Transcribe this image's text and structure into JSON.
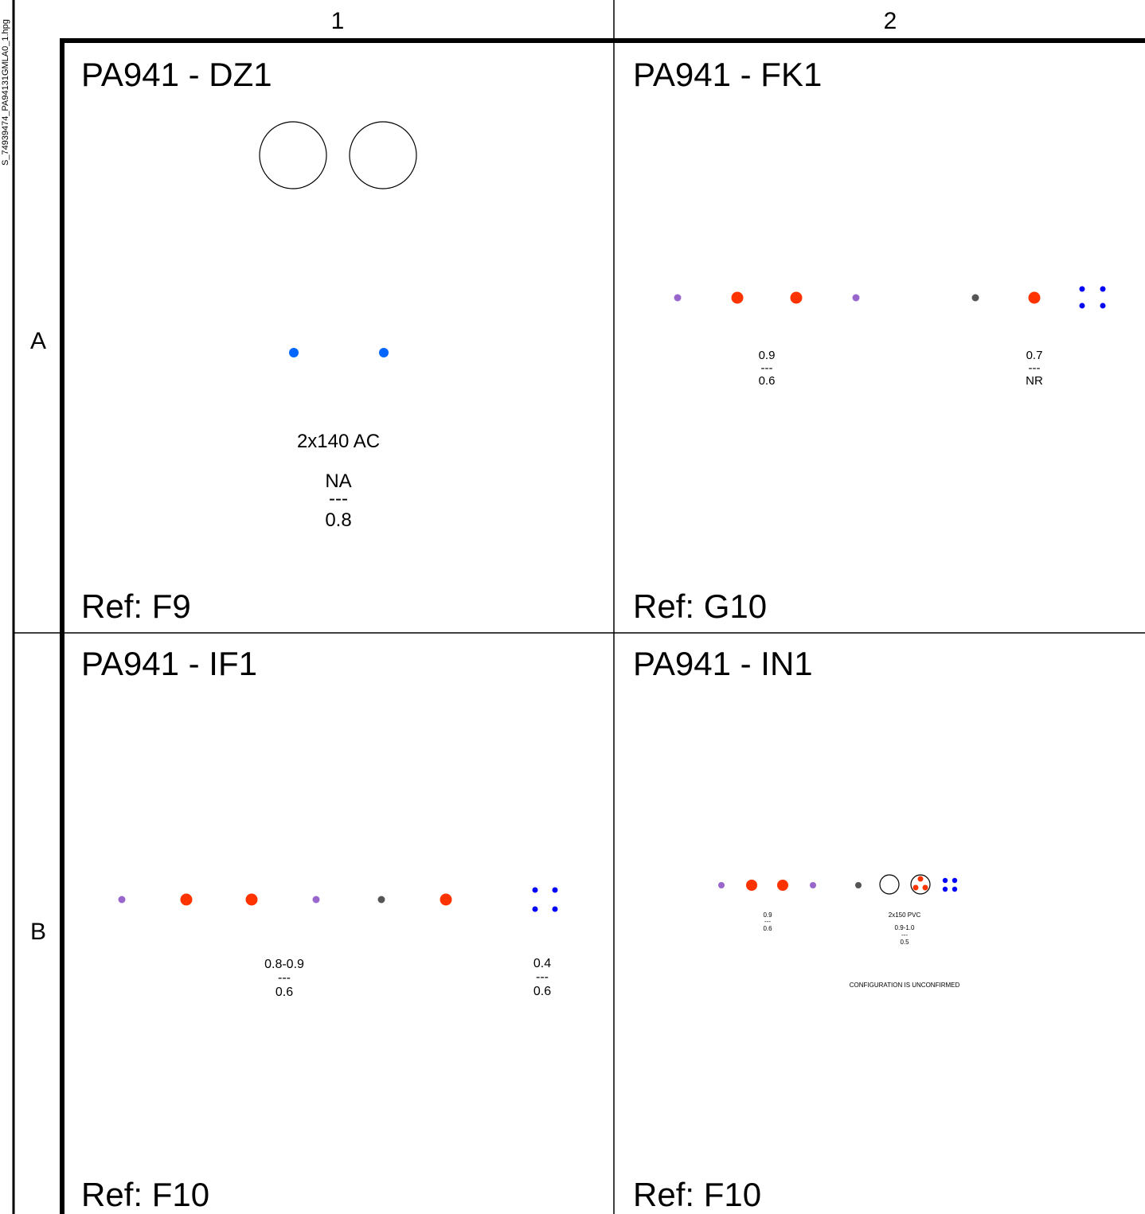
{
  "side_label": "S_74939474_PA94131GMLA0_1.hpg",
  "columns": [
    "1",
    "2"
  ],
  "rows": [
    "A",
    "B"
  ],
  "colors": {
    "purple": "#9966cc",
    "red": "#ff3300",
    "gray": "#555555",
    "blue": "#0000ff",
    "light_blue": "#0066ff"
  },
  "cells": {
    "A1": {
      "title": "PA941 - DZ1",
      "ref": "Ref: F9",
      "cable": "2x140 AC",
      "value": {
        "top": "NA",
        "sep": "---",
        "bottom": "0.8"
      }
    },
    "A2": {
      "title": "PA941 - FK1",
      "ref": "Ref: G10",
      "value1": {
        "top": "0.9",
        "sep": "---",
        "bottom": "0.6"
      },
      "value2": {
        "top": "0.7",
        "sep": "---",
        "bottom": "NR"
      }
    },
    "B1": {
      "title": "PA941 - IF1",
      "ref": "Ref: F10",
      "value1": {
        "top": "0.8-0.9",
        "sep": "---",
        "bottom": "0.6"
      },
      "value2": {
        "top": "0.4",
        "sep": "---",
        "bottom": "0.6"
      }
    },
    "B2": {
      "title": "PA941 - IN1",
      "ref": "Ref: F10",
      "value1": {
        "top": "0.9",
        "sep": "---",
        "bottom": "0.6"
      },
      "cable": "2x150 PVC",
      "value2": {
        "top": "0.9-1.0",
        "sep": "---",
        "bottom": "0.5"
      },
      "note": "CONFIGURATION IS UNCONFIRMED"
    }
  }
}
